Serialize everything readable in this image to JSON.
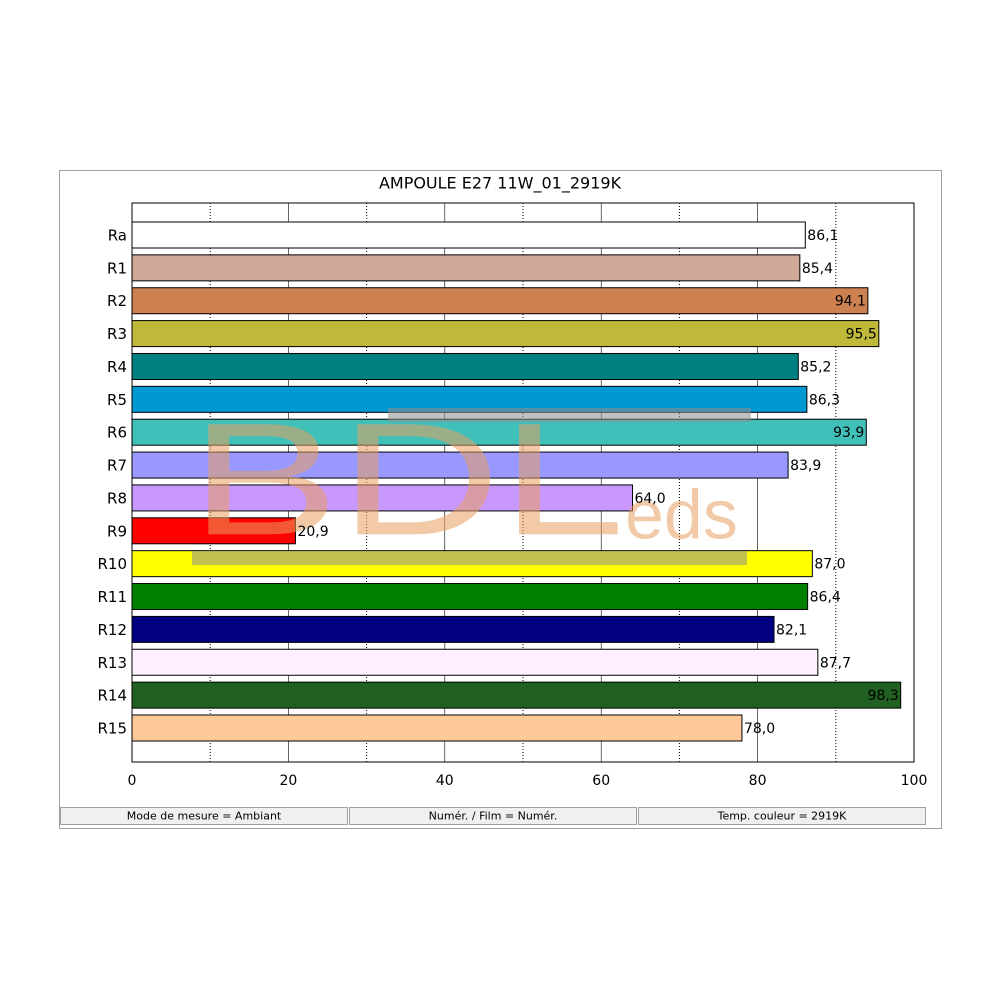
{
  "chart_data": {
    "type": "bar",
    "orientation": "horizontal",
    "title": "AMPOULE E27 11W_01_2919K",
    "categories": [
      "Ra",
      "R1",
      "R2",
      "R3",
      "R4",
      "R5",
      "R6",
      "R7",
      "R8",
      "R9",
      "R10",
      "R11",
      "R12",
      "R13",
      "R14",
      "R15"
    ],
    "values": [
      86.1,
      85.4,
      94.1,
      95.5,
      85.2,
      86.3,
      93.9,
      83.9,
      64.0,
      20.9,
      87.0,
      86.4,
      82.1,
      87.7,
      98.3,
      78.0
    ],
    "value_labels": [
      "86,1",
      "85,4",
      "94,1",
      "95,5",
      "85,2",
      "86,3",
      "93,9",
      "83,9",
      "64,0",
      "20,9",
      "87,0",
      "86,4",
      "82,1",
      "87,7",
      "98,3",
      "78,0"
    ],
    "colors": [
      "#ffffff",
      "#cfa898",
      "#cd8050",
      "#c0b838",
      "#008080",
      "#0098d0",
      "#40c0b8",
      "#9898ff",
      "#c898ff",
      "#ff0000",
      "#ffff00",
      "#008000",
      "#000080",
      "#fff0ff",
      "#206020",
      "#ffc898"
    ],
    "xlim": [
      0,
      100
    ],
    "xticks": [
      0,
      20,
      40,
      60,
      80,
      100
    ],
    "minor_xticks": [
      10,
      30,
      50,
      70,
      90
    ],
    "grid": true
  },
  "watermark": {
    "main": "BDL",
    "suffix": "eds"
  },
  "status_bar": [
    "Mode de mesure = Ambiant",
    "Numér. / Film = Numér.",
    "Temp. couleur = 2919K"
  ]
}
